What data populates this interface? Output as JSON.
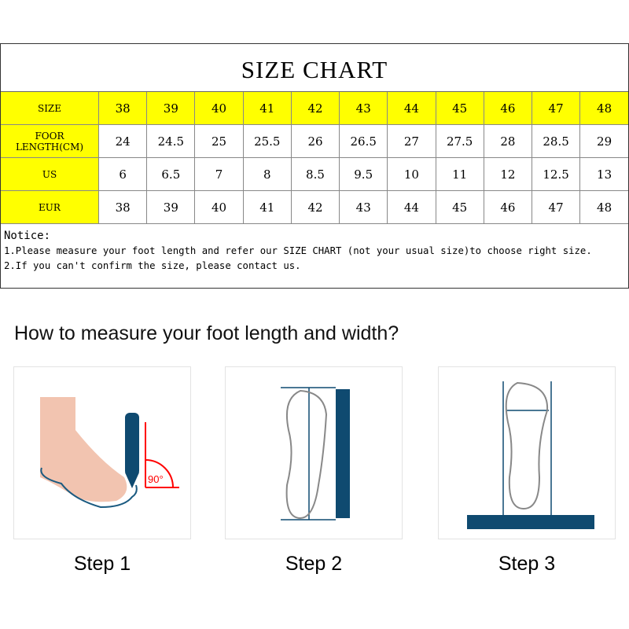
{
  "title": "SIZE CHART",
  "rows": [
    {
      "label": "SIZE",
      "values": [
        "38",
        "39",
        "40",
        "41",
        "42",
        "43",
        "44",
        "45",
        "46",
        "47",
        "48"
      ]
    },
    {
      "label": "FOOR LENGTH(CM)",
      "values": [
        "24",
        "24.5",
        "25",
        "25.5",
        "26",
        "26.5",
        "27",
        "27.5",
        "28",
        "28.5",
        "29"
      ]
    },
    {
      "label": "US",
      "values": [
        "6",
        "6.5",
        "7",
        "8",
        "8.5",
        "9.5",
        "10",
        "11",
        "12",
        "12.5",
        "13"
      ]
    },
    {
      "label": "EUR",
      "values": [
        "38",
        "39",
        "40",
        "41",
        "42",
        "43",
        "44",
        "45",
        "46",
        "47",
        "48"
      ]
    }
  ],
  "notice": {
    "title": "Notice:",
    "lines": [
      "1.Please measure your foot length and refer our SIZE CHART (not your usual size)to choose right size.",
      "2.If you can't confirm the size, please contact us."
    ]
  },
  "heading": "How to measure your foot length and width?",
  "steps": [
    {
      "label": "Step 1",
      "angle_text": "90°"
    },
    {
      "label": "Step 2"
    },
    {
      "label": "Step 3"
    }
  ],
  "colors": {
    "highlight": "#ffff00",
    "ink": "#0f4a70",
    "angle": "#ff0000",
    "skin": "#f2c4b0"
  }
}
